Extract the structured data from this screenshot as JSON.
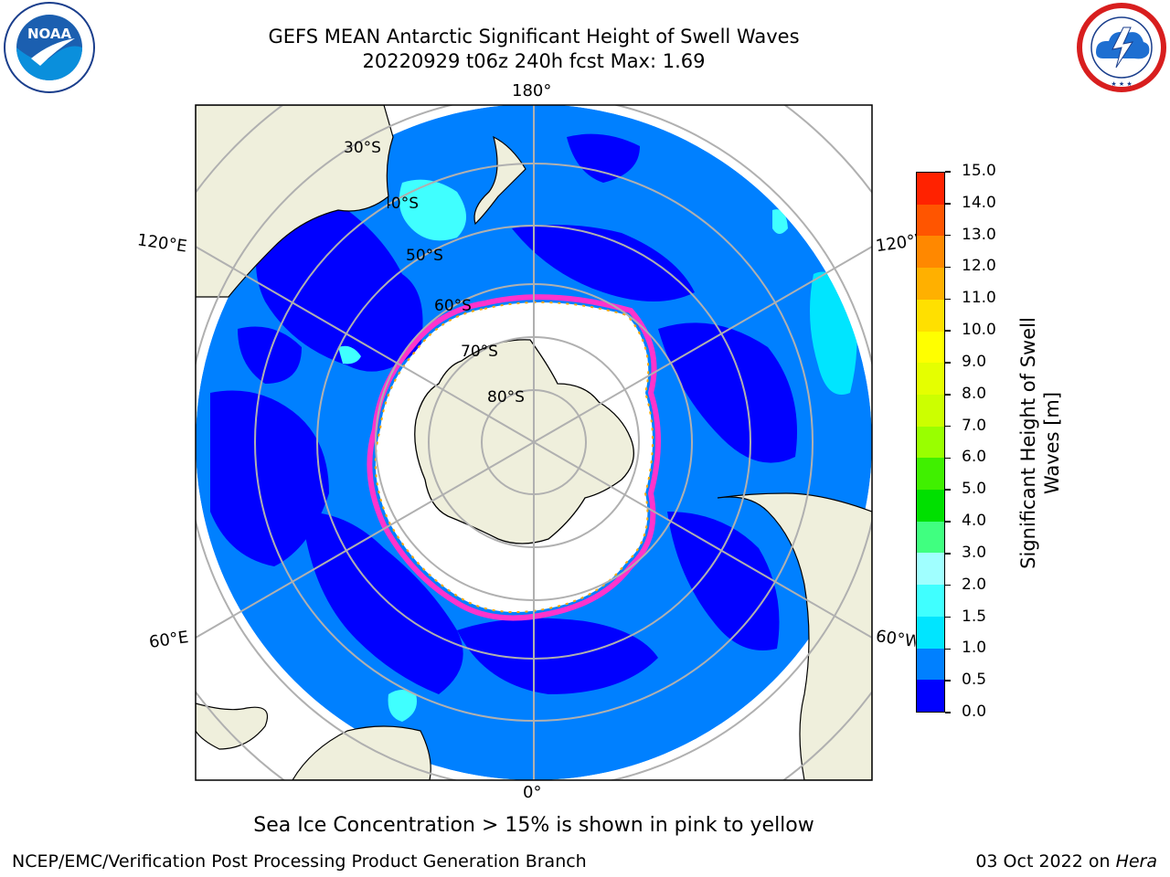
{
  "header": {
    "title_line1": "GEFS MEAN Antarctic Significant Height of Swell Waves",
    "title_line2": "20220929 t06z 240h fcst   Max: 1.69"
  },
  "logos": {
    "left": {
      "name": "noaa-logo",
      "text": "NOAA",
      "ring_text": "NATIONAL OCEANIC AND ATMOSPHERIC ADMINISTRATION · U.S. DEPARTMENT OF COMMERCE"
    },
    "right": {
      "name": "nws-logo",
      "ring_text": "NATIONAL WEATHER SERVICE"
    }
  },
  "map": {
    "projection": "south-polar-stereographic",
    "longitude_labels": {
      "top": "180°",
      "bottom": "0°",
      "upper_left": "120°E",
      "upper_right": "120°W",
      "lower_left": "60°E",
      "lower_right": "60°W"
    },
    "latitude_labels": [
      "30°S",
      "40°S",
      "50°S",
      "60°S",
      "70°S",
      "80°S"
    ],
    "colors": {
      "land": "#efefdc",
      "coast": "#000000",
      "ice_free_open": "#ffffff",
      "grid": "#b0b0b0",
      "sea_ice_edge": [
        "#ff33cc",
        "#ffaa00",
        "#ffee00"
      ]
    },
    "caption": "Sea Ice Concentration > 15% is shown in pink to yellow"
  },
  "colorbar": {
    "label": "Significant Height of Swell Waves [m]",
    "label_line1": "Significant Height of Swell",
    "label_line2": "Waves [m]",
    "ticks": [
      "0.0",
      "0.5",
      "1.0",
      "1.5",
      "2.0",
      "3.0",
      "4.0",
      "5.0",
      "6.0",
      "7.0",
      "8.0",
      "9.0",
      "10.0",
      "11.0",
      "12.0",
      "13.0",
      "14.0",
      "15.0"
    ],
    "colors": [
      "#0000ff",
      "#0080ff",
      "#00e5ff",
      "#40ffff",
      "#a0ffff",
      "#40ff80",
      "#00e000",
      "#40f000",
      "#99ff00",
      "#ccff00",
      "#e5ff00",
      "#ffff00",
      "#ffe000",
      "#ffb000",
      "#ff8800",
      "#ff5500",
      "#ff2200",
      "#ff0000"
    ]
  },
  "footer": {
    "left": "NCEP/EMC/Verification Post Processing Product Generation Branch",
    "right_date": "03 Oct 2022 on ",
    "right_host": "Hera"
  }
}
